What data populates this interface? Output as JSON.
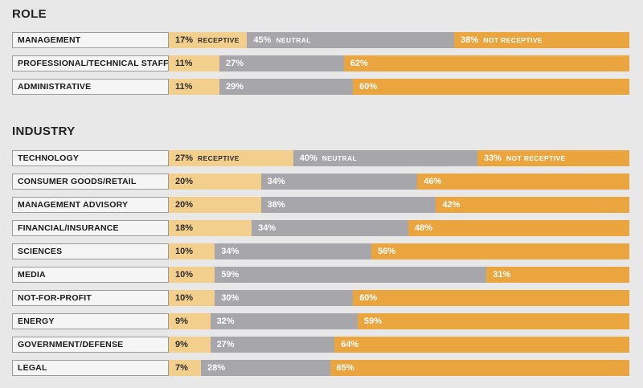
{
  "sections": [
    {
      "title": "ROLE"
    },
    {
      "title": "INDUSTRY"
    }
  ],
  "colors": {
    "receptive": "#f3cf8e",
    "neutral": "#a7a6ab",
    "not_receptive": "#eba53f"
  },
  "chart_data": [
    {
      "type": "bar",
      "orientation": "horizontal-stacked-100",
      "title": "ROLE",
      "categories": [
        "MANAGEMENT",
        "PROFESSIONAL/TECHNICAL STAFF",
        "ADMINISTRATIVE"
      ],
      "series": [
        {
          "name": "RECEPTIVE",
          "values": [
            17,
            11,
            11
          ]
        },
        {
          "name": "NEUTRAL",
          "values": [
            45,
            27,
            29
          ]
        },
        {
          "name": "NOT RECEPTIVE",
          "values": [
            38,
            62,
            60
          ]
        }
      ]
    },
    {
      "type": "bar",
      "orientation": "horizontal-stacked-100",
      "title": "INDUSTRY",
      "categories": [
        "TECHNOLOGY",
        "CONSUMER GOODS/RETAIL",
        "MANAGEMENT ADVISORY",
        "FINANCIAL/INSURANCE",
        "SCIENCES",
        "MEDIA",
        "NOT-FOR-PROFIT",
        "ENERGY",
        "GOVERNMENT/DEFENSE",
        "LEGAL"
      ],
      "series": [
        {
          "name": "RECEPTIVE",
          "values": [
            27,
            20,
            20,
            18,
            10,
            10,
            10,
            9,
            9,
            7
          ]
        },
        {
          "name": "NEUTRAL",
          "values": [
            40,
            34,
            38,
            34,
            34,
            59,
            30,
            32,
            27,
            28
          ]
        },
        {
          "name": "NOT RECEPTIVE",
          "values": [
            33,
            46,
            42,
            48,
            56,
            31,
            60,
            59,
            64,
            65
          ]
        }
      ]
    }
  ]
}
